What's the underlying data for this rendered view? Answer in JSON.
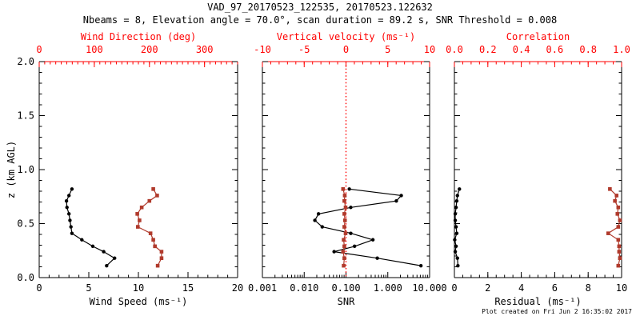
{
  "header": {
    "title": "VAD_97_20170523_122535, 20170523.122632",
    "subtitle": "Nbeams = 8, Elevation angle = 70.0°, scan duration = 89.2 s, SNR Threshold = 0.008"
  },
  "footer": {
    "created": "Plot created on Fri Jun  2 16:35:02 2017"
  },
  "colors": {
    "axis_red": "#ff0000",
    "data_red": "#b03a2c",
    "black": "#000000",
    "background": "#ffffff"
  },
  "y_axis": {
    "label": "z (km AGL)",
    "range": [
      0,
      2
    ],
    "tick_values": [
      0,
      0.5,
      1,
      1.5,
      2
    ],
    "tick_labels": [
      "0.0",
      "0.5",
      "1.0",
      "1.5",
      "2.0"
    ],
    "minor_step": 0.1
  },
  "heights_km": [
    0.82,
    0.76,
    0.71,
    0.65,
    0.59,
    0.53,
    0.47,
    0.41,
    0.35,
    0.29,
    0.24,
    0.18,
    0.11
  ],
  "chart_data": [
    {
      "type": "line",
      "name": "wind",
      "bottom_axis": {
        "label": "Wind Speed (ms⁻¹)",
        "scale": "linear",
        "range": [
          0,
          20
        ],
        "tick_values": [
          0,
          5,
          10,
          15,
          20
        ],
        "tick_labels": [
          "0",
          "5",
          "10",
          "15",
          "20"
        ],
        "minor_step": 1,
        "color": "#000000"
      },
      "top_axis": {
        "label": "Wind Direction (deg)",
        "scale": "linear",
        "range": [
          0,
          360
        ],
        "tick_values": [
          0,
          100,
          200,
          300
        ],
        "tick_labels": [
          "0",
          "100",
          "200",
          "300"
        ],
        "minor_step": 10,
        "color": "#ff0000"
      },
      "zero_line": null,
      "series": [
        {
          "name": "wind-speed",
          "axis": "bottom",
          "color": "#000000",
          "marker": "circle",
          "values": [
            3.3,
            3.0,
            2.75,
            2.8,
            3.0,
            3.1,
            3.2,
            3.3,
            4.3,
            5.4,
            6.5,
            7.6,
            6.8
          ]
        },
        {
          "name": "wind-direction",
          "axis": "top",
          "color": "#b03a2c",
          "marker": "square",
          "values": [
            207,
            214,
            200,
            186,
            178,
            182,
            179,
            202,
            207,
            210,
            222,
            222,
            215
          ]
        }
      ]
    },
    {
      "type": "line",
      "name": "snr",
      "bottom_axis": {
        "label": "SNR",
        "scale": "log",
        "range": [
          0.001,
          10
        ],
        "tick_values": [
          0.001,
          0.01,
          0.1,
          1,
          10
        ],
        "tick_labels": [
          "0.001",
          "0.010",
          "0.100",
          "1.000",
          "10.000"
        ],
        "minor": "log",
        "color": "#000000"
      },
      "top_axis": {
        "label": "Vertical velocity (ms⁻¹)",
        "scale": "linear",
        "range": [
          -10,
          10
        ],
        "tick_values": [
          -10,
          -5,
          0,
          5,
          10
        ],
        "tick_labels": [
          "-10",
          "-5",
          "0",
          "5",
          "10"
        ],
        "minor_step": 1,
        "color": "#ff0000"
      },
      "zero_line": {
        "axis": "top",
        "value": 0,
        "color": "#ff0000",
        "style": "dotted"
      },
      "series": [
        {
          "name": "snr",
          "axis": "bottom",
          "color": "#000000",
          "marker": "circle",
          "values": [
            0.12,
            2.1,
            1.6,
            0.13,
            0.022,
            0.018,
            0.027,
            0.13,
            0.44,
            0.16,
            0.052,
            0.56,
            6.2
          ]
        },
        {
          "name": "vertical-velocity",
          "axis": "top",
          "color": "#b03a2c",
          "marker": "square",
          "values": [
            -0.35,
            -0.15,
            -0.2,
            -0.05,
            -0.2,
            -0.12,
            -0.2,
            -0.05,
            -0.28,
            -0.2,
            -0.35,
            -0.2,
            -0.28
          ]
        }
      ]
    },
    {
      "type": "line",
      "name": "residual",
      "bottom_axis": {
        "label": "Residual (ms⁻¹)",
        "scale": "linear",
        "range": [
          0,
          10
        ],
        "tick_values": [
          0,
          2,
          4,
          6,
          8,
          10
        ],
        "tick_labels": [
          "0",
          "2",
          "4",
          "6",
          "8",
          "10"
        ],
        "minor_step": 0.5,
        "color": "#000000"
      },
      "top_axis": {
        "label": "Correlation",
        "scale": "linear",
        "range": [
          0,
          1
        ],
        "tick_values": [
          0,
          0.2,
          0.4,
          0.6,
          0.8,
          1
        ],
        "tick_labels": [
          "0.0",
          "0.2",
          "0.4",
          "0.6",
          "0.8",
          "1.0"
        ],
        "minor_step": 0.05,
        "color": "#ff0000"
      },
      "zero_line": null,
      "series": [
        {
          "name": "residual",
          "axis": "bottom",
          "color": "#000000",
          "marker": "circle",
          "values": [
            0.3,
            0.18,
            0.14,
            0.1,
            0.05,
            0.05,
            0.1,
            0.14,
            0.02,
            0.1,
            0.05,
            0.18,
            0.21
          ]
        },
        {
          "name": "correlation",
          "axis": "top",
          "color": "#b03a2c",
          "marker": "square",
          "values": [
            0.93,
            0.97,
            0.96,
            0.98,
            0.975,
            0.99,
            0.98,
            0.92,
            0.98,
            0.985,
            0.985,
            0.99,
            0.98
          ]
        }
      ]
    }
  ]
}
